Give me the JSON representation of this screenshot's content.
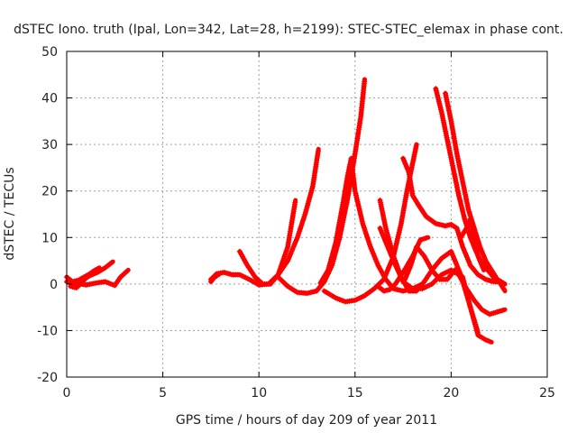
{
  "chart_data": {
    "type": "scatter",
    "title": "dSTEC Iono. truth (Ipal, Lon=342, Lat=28, h=2199): STEC-STEC_elemax in phase cont.",
    "xlabel": "GPS time / hours of day 209 of year 2011",
    "ylabel": "dSTEC  / TECUs",
    "xlim": [
      0,
      25
    ],
    "ylim": [
      -20,
      50
    ],
    "xticks": [
      0,
      5,
      10,
      15,
      20,
      25
    ],
    "yticks": [
      -20,
      -10,
      0,
      10,
      20,
      30,
      40,
      50
    ],
    "grid": true,
    "marker": "plus",
    "color": "#ff0000",
    "series": [
      {
        "x": [
          0.0,
          0.3,
          0.6,
          0.9,
          1.2,
          1.5
        ],
        "y": [
          1.5,
          0.5,
          0.8,
          1.5,
          2.2,
          3.0
        ]
      },
      {
        "x": [
          0.0,
          0.4,
          0.8,
          1.2,
          1.6,
          2.0,
          2.4
        ],
        "y": [
          0.5,
          0.0,
          0.8,
          1.8,
          2.5,
          3.5,
          4.8
        ]
      },
      {
        "x": [
          0.2,
          0.5,
          0.8,
          1.1,
          1.4,
          1.7
        ],
        "y": [
          -0.5,
          -0.8,
          0.3,
          1.8,
          2.8,
          3.5
        ]
      },
      {
        "x": [
          0.5,
          1.0,
          1.5,
          2.0,
          2.5,
          2.8,
          3.2
        ],
        "y": [
          0.2,
          -0.2,
          0.2,
          0.5,
          -0.3,
          1.5,
          3.0
        ]
      },
      {
        "x": [
          7.5,
          7.8,
          8.2,
          8.6,
          9.0,
          9.5,
          10.0,
          10.5,
          11.0,
          11.5,
          11.9
        ],
        "y": [
          1.0,
          2.2,
          2.5,
          2.0,
          2.0,
          1.0,
          -0.2,
          0.0,
          2.0,
          8.0,
          18.0
        ]
      },
      {
        "x": [
          9.0,
          9.4,
          9.8,
          10.2,
          10.6,
          11.0,
          11.5,
          12.0,
          12.4,
          12.8,
          13.1
        ],
        "y": [
          7.0,
          4.0,
          1.5,
          0.0,
          0.0,
          2.0,
          5.0,
          10.0,
          15.0,
          21.0,
          29.0
        ]
      },
      {
        "x": [
          11.0,
          11.5,
          12.0,
          12.5,
          13.0,
          13.4,
          13.8,
          14.2,
          14.6,
          15.0,
          15.3,
          15.5
        ],
        "y": [
          1.5,
          -0.5,
          -1.8,
          -2.0,
          -1.5,
          0.5,
          4.0,
          10.0,
          18.0,
          28.0,
          36.0,
          44.0
        ]
      },
      {
        "x": [
          13.2,
          13.6,
          14.0,
          14.4,
          14.6,
          14.8,
          15.0,
          15.4,
          15.8,
          16.2,
          16.6,
          17.0,
          17.5,
          18.0,
          18.5
        ],
        "y": [
          0.2,
          3.0,
          9.0,
          18.0,
          23.0,
          27.0,
          20.0,
          13.0,
          8.0,
          4.0,
          1.0,
          -1.0,
          -1.5,
          -1.0,
          0.0
        ]
      },
      {
        "x": [
          13.4,
          14.0,
          14.5,
          15.0,
          15.5,
          16.0,
          16.5,
          17.0,
          17.4,
          17.7,
          18.0,
          18.2
        ],
        "y": [
          -1.5,
          -3.0,
          -3.8,
          -3.5,
          -2.5,
          -1.0,
          1.0,
          6.0,
          13.0,
          20.0,
          26.0,
          30.0
        ]
      },
      {
        "x": [
          16.3,
          16.6,
          17.0,
          17.4,
          17.8,
          18.2,
          18.6,
          19.0,
          19.5,
          20.0,
          20.5,
          21.0,
          21.4
        ],
        "y": [
          18.0,
          12.0,
          6.0,
          1.5,
          -1.5,
          -1.5,
          0.5,
          3.0,
          5.5,
          7.0,
          2.0,
          -5.0,
          -10.5
        ]
      },
      {
        "x": [
          16.3,
          16.6,
          17.0,
          17.5,
          18.0,
          18.5,
          19.0,
          19.5,
          20.0,
          20.4,
          20.8,
          21.2,
          21.6,
          22.0,
          22.4,
          22.8
        ],
        "y": [
          12.0,
          9.0,
          5.0,
          0.5,
          -1.0,
          -1.0,
          0.0,
          2.0,
          3.0,
          2.0,
          -1.0,
          -3.5,
          -5.5,
          -6.5,
          -6.0,
          -5.5
        ]
      },
      {
        "x": [
          17.5,
          17.8,
          18.0,
          18.3,
          18.7,
          19.2,
          19.7,
          20.0,
          20.3,
          20.6,
          21.0,
          21.4,
          21.8,
          22.2,
          22.6,
          22.8
        ],
        "y": [
          27.0,
          24.0,
          19.0,
          17.0,
          14.5,
          13.0,
          12.5,
          12.8,
          12.0,
          8.0,
          4.0,
          2.0,
          1.0,
          0.5,
          0.5,
          0.0
        ]
      },
      {
        "x": [
          17.6,
          17.9,
          18.2,
          18.6,
          19.0,
          19.4,
          19.8,
          20.2,
          20.6,
          21.0,
          21.4,
          21.8,
          22.1
        ],
        "y": [
          1.0,
          4.0,
          8.0,
          6.0,
          3.0,
          1.0,
          1.0,
          3.0,
          1.5,
          -5.0,
          -11.0,
          -12.0,
          -12.5
        ]
      },
      {
        "x": [
          19.2,
          19.5,
          19.8,
          20.1,
          20.4,
          20.7,
          21.0,
          21.3,
          21.6,
          21.9,
          22.2,
          22.5,
          22.8
        ],
        "y": [
          42.0,
          37.0,
          31.0,
          25.0,
          19.0,
          14.0,
          10.0,
          7.0,
          4.5,
          3.0,
          1.5,
          0.5,
          -1.5
        ]
      },
      {
        "x": [
          19.7,
          20.0,
          20.3,
          20.6,
          20.9,
          21.2,
          21.5,
          21.8,
          22.1,
          22.4,
          22.8
        ],
        "y": [
          41.0,
          35.0,
          28.0,
          22.0,
          16.0,
          12.0,
          8.0,
          5.0,
          3.0,
          1.0,
          0.0
        ]
      },
      {
        "x": [
          20.5,
          20.8,
          21.0,
          21.2,
          21.4,
          21.7
        ],
        "y": [
          10.0,
          12.0,
          14.0,
          10.0,
          6.0,
          3.0
        ]
      },
      {
        "x": [
          16.2,
          16.5,
          16.8,
          17.1,
          17.5,
          18.0,
          18.4,
          18.8
        ],
        "y": [
          -0.5,
          -1.5,
          -1.2,
          0.0,
          2.5,
          6.0,
          9.5,
          10.0
        ]
      },
      {
        "x": [
          7.5,
          7.7,
          7.9
        ],
        "y": [
          0.5,
          1.5,
          2.0
        ]
      }
    ]
  }
}
